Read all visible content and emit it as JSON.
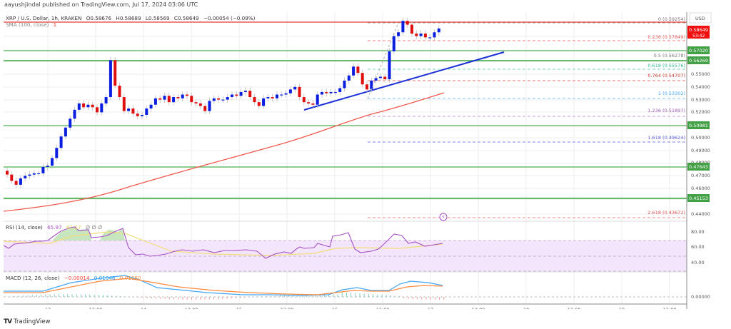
{
  "header": {
    "published": "aayushjindal published on TradingView.com, Jul 17, 2024 03:06 UTC",
    "symbol": "XRP / U.S. Dollar, 1h, KRAKEN",
    "open": "O0.58676",
    "high": "H0.58689",
    "low": "L0.58569",
    "close": "C0.58649",
    "change": "−0.00054 (−0.09%)",
    "sma_label": "SMA (100, close)",
    "sma_value": "1"
  },
  "price_axis": {
    "currency": "USD",
    "ticks": [
      "0.55000",
      "0.54000",
      "0.53000",
      "0.52000",
      "0.50000",
      "0.49000",
      "0.48000",
      "0.47000",
      "0.46000",
      "0.44000"
    ],
    "current_price": "0.58649",
    "countdown": "53:42",
    "levels": [
      "0.57020",
      "0.56269",
      "0.50981",
      "0.47643",
      "0.45153"
    ]
  },
  "rsi": {
    "label": "RSI (14, close)",
    "value": "65.97",
    "ma_value": "67.17",
    "extra": "∅ ∅ ∅",
    "ticks": [
      "80.00",
      "60.00",
      "40.00"
    ]
  },
  "macd": {
    "label": "MACD (12, 26, close)",
    "hist": "−0.00014",
    "macd": "0.01046",
    "signal": "0.01060",
    "ticks": [
      "0.00000"
    ]
  },
  "time_axis": [
    "13",
    "12:00",
    "14",
    "12:00",
    "15",
    "12:00",
    "16",
    "12:00",
    "17",
    "12:00",
    "18",
    "12:00",
    "19",
    "12:00"
  ],
  "footer": {
    "brand": "TradingView",
    "logo": "TV"
  },
  "colors": {
    "up": "#0a1ee0",
    "down": "#e01010",
    "sma": "#f05a4f",
    "support": "#4caf50",
    "trend": "#1b2fd6",
    "rsi": "#a64fc4",
    "rsi_ma": "#f3de7a",
    "macd": "#42a5f5",
    "signal": "#ff8a3d"
  },
  "chart_data": {
    "type": "candlestick",
    "title": "XRP / U.S. Dollar, 1h, KRAKEN",
    "xlabel": "",
    "ylabel": "USD",
    "ylim": [
      0.436,
      0.596
    ],
    "x_ticks": [
      "13",
      "12:00",
      "14",
      "12:00",
      "15",
      "12:00",
      "16",
      "12:00",
      "17",
      "12:00",
      "18",
      "12:00",
      "19",
      "12:00"
    ],
    "ohlc_last": {
      "open": 0.58676,
      "high": 0.58689,
      "low": 0.58569,
      "close": 0.58649,
      "change": -0.00054,
      "change_pct": -0.09
    },
    "horizontal_levels": [
      0.5702,
      0.56269,
      0.50981,
      0.47643,
      0.45153
    ],
    "fibonacci": [
      {
        "ratio": "0",
        "price": 0.59254
      },
      {
        "ratio": "0.236",
        "price": 0.57849
      },
      {
        "ratio": "0.5",
        "price": 0.56278
      },
      {
        "ratio": "0.618",
        "price": 0.55576
      },
      {
        "ratio": "0.764",
        "price": 0.54707
      },
      {
        "ratio": "1",
        "price": 0.53302
      },
      {
        "ratio": "1.236",
        "price": 0.51897
      },
      {
        "ratio": "1.618",
        "price": 0.49624
      },
      {
        "ratio": "2.618",
        "price": 0.43672
      }
    ],
    "trendline": {
      "from": {
        "time": "15 ~19:00",
        "price": 0.5245
      },
      "to": {
        "time": "17 ~10:00",
        "price": 0.57
      }
    },
    "sma100": {
      "start": 0.441,
      "end": 0.536
    },
    "closes_approx": [
      0.471,
      0.466,
      0.463,
      0.468,
      0.47,
      0.471,
      0.472,
      0.472,
      0.477,
      0.478,
      0.484,
      0.492,
      0.501,
      0.508,
      0.515,
      0.522,
      0.527,
      0.524,
      0.526,
      0.524,
      0.52,
      0.527,
      0.532,
      0.561,
      0.541,
      0.532,
      0.521,
      0.523,
      0.519,
      0.517,
      0.518,
      0.523,
      0.526,
      0.531,
      0.53,
      0.533,
      0.528,
      0.532,
      0.531,
      0.534,
      0.533,
      0.528,
      0.527,
      0.525,
      0.521,
      0.529,
      0.531,
      0.53,
      0.53,
      0.532,
      0.534,
      0.533,
      0.536,
      0.537,
      0.532,
      0.528,
      0.525,
      0.531,
      0.532,
      0.531,
      0.534,
      0.534,
      0.535,
      0.538,
      0.54,
      0.532,
      0.528,
      0.527,
      0.526,
      0.534,
      0.536,
      0.535,
      0.536,
      0.536,
      0.539,
      0.545,
      0.549,
      0.556,
      0.551,
      0.542,
      0.538,
      0.545,
      0.547,
      0.548,
      0.546,
      0.568,
      0.58,
      0.583,
      0.592,
      0.589,
      0.582,
      0.58,
      0.582,
      0.579,
      0.579,
      0.583,
      0.586
    ]
  }
}
